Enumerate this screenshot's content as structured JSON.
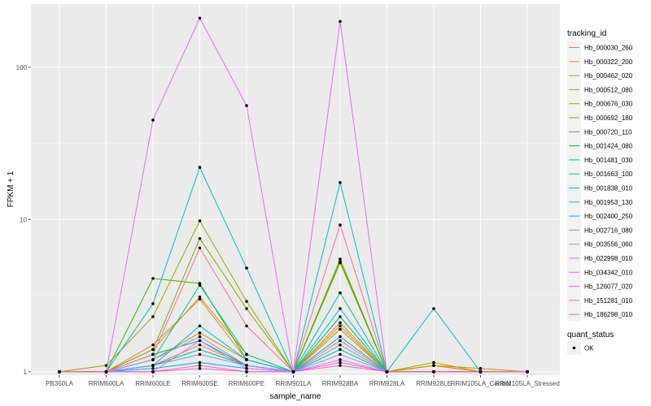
{
  "chart_data": {
    "type": "line",
    "xlabel": "sample_name",
    "ylabel": "FPKM + 1",
    "y_scale": "log10",
    "ylim": [
      0.95,
      260
    ],
    "y_ticks": [
      1,
      10,
      100
    ],
    "y_tick_labels": [
      "1",
      "10",
      "100"
    ],
    "grid": true,
    "legend_position": "right",
    "categories": [
      "PB350LA",
      "RRIM600LA",
      "RRIM600LE",
      "RRIM600SE",
      "RRIM600PE",
      "RRIM901LA",
      "RRIM928BA",
      "RRIM928LA",
      "RRIM928LE",
      "RRIM105LA_Control",
      "RRIM105LA_Stressed"
    ],
    "color_legend": {
      "title": "tracking_id",
      "entries": [
        "Hb_000030_260",
        "Hb_000322_200",
        "Hb_000462_020",
        "Hb_000512_080",
        "Hb_000676_030",
        "Hb_000692_180",
        "Hb_000720_110",
        "Hb_001424_080",
        "Hb_001481_030",
        "Hb_001663_100",
        "Hb_001838_010",
        "Hb_001953_130",
        "Hb_002400_250",
        "Hb_002716_080",
        "Hb_003556_060",
        "Hb_022998_010",
        "Hb_034342_010",
        "Hb_126077_020",
        "Hb_151281_010",
        "Hb_186298_010"
      ]
    },
    "shape_legend": {
      "title": "quant_status",
      "entries": [
        "OK"
      ]
    },
    "series": [
      {
        "name": "Hb_000030_260",
        "color": "#F8766D",
        "values": [
          1.0,
          1.0,
          1.1,
          1.5,
          1.1,
          1.0,
          1.6,
          1.0,
          1.0,
          1.0,
          1.0
        ]
      },
      {
        "name": "Hb_000322_200",
        "color": "#EA8331",
        "values": [
          1.0,
          1.0,
          1.5,
          3.0,
          1.2,
          1.0,
          2.1,
          1.0,
          1.1,
          1.0,
          1.0
        ]
      },
      {
        "name": "Hb_000462_020",
        "color": "#D89000",
        "values": [
          1.0,
          1.0,
          1.4,
          3.1,
          1.3,
          1.0,
          2.0,
          1.0,
          1.1,
          1.0,
          1.0
        ]
      },
      {
        "name": "Hb_000512_080",
        "color": "#C09B00",
        "values": [
          1.0,
          1.0,
          1.2,
          1.8,
          1.2,
          1.0,
          1.9,
          1.0,
          1.15,
          1.0,
          1.0
        ]
      },
      {
        "name": "Hb_000676_030",
        "color": "#A3A500",
        "values": [
          1.0,
          1.1,
          2.3,
          9.8,
          2.9,
          1.0,
          5.5,
          1.0,
          1.1,
          1.05,
          1.0
        ]
      },
      {
        "name": "Hb_000692_180",
        "color": "#7CAE00",
        "values": [
          1.0,
          1.0,
          1.4,
          7.5,
          2.6,
          1.0,
          5.2,
          1.0,
          1.0,
          1.0,
          1.0
        ]
      },
      {
        "name": "Hb_000720_110",
        "color": "#39B600",
        "values": [
          1.0,
          1.0,
          4.1,
          3.8,
          1.2,
          1.0,
          5.3,
          1.0,
          1.0,
          1.0,
          1.0
        ]
      },
      {
        "name": "Hb_001424_080",
        "color": "#00BB4E",
        "values": [
          1.0,
          1.0,
          1.3,
          1.6,
          1.1,
          1.0,
          2.3,
          1.0,
          1.0,
          1.0,
          1.0
        ]
      },
      {
        "name": "Hb_001481_030",
        "color": "#00BF7D",
        "values": [
          1.0,
          1.0,
          1.1,
          1.4,
          1.1,
          1.0,
          1.4,
          1.0,
          1.0,
          1.0,
          1.0
        ]
      },
      {
        "name": "Hb_001663_100",
        "color": "#00C1A3",
        "values": [
          1.0,
          1.0,
          1.2,
          3.7,
          1.3,
          1.0,
          3.3,
          1.0,
          1.0,
          1.0,
          1.0
        ]
      },
      {
        "name": "Hb_001838_010",
        "color": "#00BFC4",
        "values": [
          1.0,
          1.0,
          2.8,
          22.0,
          4.8,
          1.0,
          17.5,
          1.0,
          2.6,
          1.0,
          1.0
        ]
      },
      {
        "name": "Hb_001953_130",
        "color": "#00B8E7",
        "values": [
          1.0,
          1.0,
          1.1,
          2.0,
          1.2,
          1.0,
          2.6,
          1.0,
          1.0,
          1.0,
          1.0
        ]
      },
      {
        "name": "Hb_002400_250",
        "color": "#00A9FF",
        "values": [
          1.0,
          1.0,
          1.05,
          1.15,
          1.05,
          1.0,
          1.7,
          1.0,
          1.0,
          1.0,
          1.0
        ]
      },
      {
        "name": "Hb_002716_080",
        "color": "#619CFF",
        "values": [
          1.0,
          1.0,
          1.1,
          1.3,
          1.1,
          1.0,
          1.5,
          1.0,
          1.0,
          1.0,
          1.0
        ]
      },
      {
        "name": "Hb_003556_060",
        "color": "#9F8CFF",
        "values": [
          1.0,
          1.0,
          1.2,
          1.7,
          1.1,
          1.0,
          1.3,
          1.0,
          1.0,
          1.0,
          1.0
        ]
      },
      {
        "name": "Hb_022998_010",
        "color": "#C77CFF",
        "values": [
          1.0,
          1.0,
          1.0,
          1.6,
          1.05,
          1.0,
          1.2,
          1.0,
          1.0,
          1.0,
          1.0
        ]
      },
      {
        "name": "Hb_034342_010",
        "color": "#E76BF3",
        "values": [
          1.0,
          1.0,
          45.0,
          210.0,
          56.0,
          1.0,
          200.0,
          1.0,
          1.0,
          1.0,
          1.0
        ]
      },
      {
        "name": "Hb_126077_020",
        "color": "#FA62DB",
        "values": [
          1.0,
          1.0,
          1.0,
          1.05,
          1.0,
          1.0,
          1.1,
          1.0,
          1.0,
          1.0,
          1.0
        ]
      },
      {
        "name": "Hb_151281_010",
        "color": "#FF62BC",
        "values": [
          1.0,
          1.0,
          1.0,
          1.1,
          1.0,
          1.0,
          1.15,
          1.0,
          1.0,
          1.0,
          1.0
        ]
      },
      {
        "name": "Hb_186298_010",
        "color": "#FF6C91",
        "values": [
          1.0,
          1.0,
          1.3,
          6.5,
          2.0,
          1.0,
          9.2,
          1.0,
          1.0,
          1.0,
          1.0
        ]
      }
    ]
  }
}
